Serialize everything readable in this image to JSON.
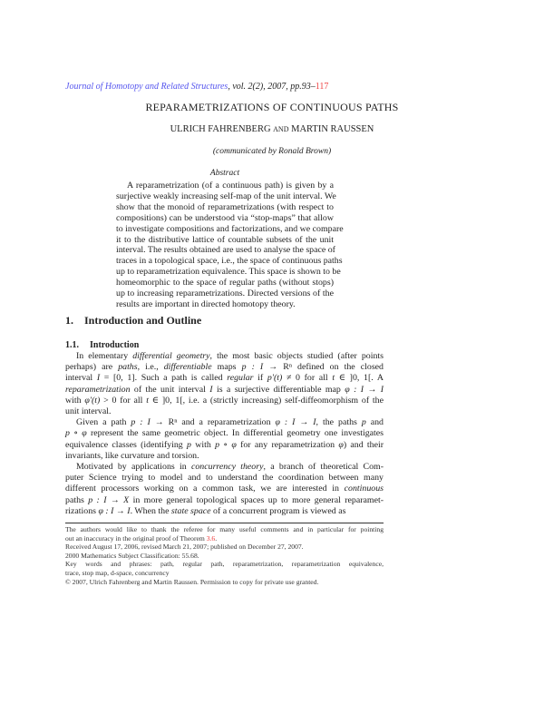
{
  "header": {
    "journal": "Journal of Homotopy and Related Structures",
    "details": ", vol. 2(2), 2007, pp.93–",
    "last_page": "117",
    "link_color": "#5555ee",
    "ref_color": "#ee4444"
  },
  "title": "REPARAMETRIZATIONS OF CONTINUOUS PATHS",
  "authors": {
    "first": "ULRICH FAHRENBERG",
    "conj": "AND",
    "second": "MARTIN RAUSSEN"
  },
  "communicated": "(communicated by Ronald Brown)",
  "abstract_label": "Abstract",
  "abstract": [
    [
      [
        {
          "t": "A reparametrization (of a continuous path) is given by a"
        }
      ],
      [
        {
          "t": "surjective weakly increasing self-map of the unit interval. We"
        }
      ],
      [
        {
          "t": "show that the monoid of reparametrizations (with respect to"
        }
      ],
      [
        {
          "t": "compositions) can be understood via “stop-maps” that allow"
        }
      ],
      [
        {
          "t": "to investigate compositions and factorizations, and we compare"
        }
      ],
      [
        {
          "t": "it to the distributive lattice of countable subsets of the unit"
        }
      ],
      [
        {
          "t": "interval. The results obtained are used to analyse the space of"
        }
      ],
      [
        {
          "t": "traces in a topological space, i.e., the space of continuous paths"
        }
      ],
      [
        {
          "t": "up to reparametrization equivalence. This space is shown to be"
        }
      ],
      [
        {
          "t": "homeomorphic to the space of regular paths (without stops)"
        }
      ],
      [
        {
          "t": "up to increasing reparametrizations. Directed versions of the"
        }
      ],
      [
        {
          "t": "results are important in directed homotopy theory."
        }
      ]
    ]
  ],
  "section": {
    "number": "1.",
    "title": "Introduction and Outline"
  },
  "subsection": {
    "number": "1.1.",
    "title": "Introduction"
  },
  "paragraphs": [
    [
      [
        {
          "t": "In elementary "
        },
        {
          "t": "differential geometry",
          "i": true
        },
        {
          "t": ", the most basic objects studied (after points"
        }
      ],
      [
        {
          "t": "perhaps) are "
        },
        {
          "t": "paths",
          "i": true
        },
        {
          "t": ", i.e., "
        },
        {
          "t": "differentiable",
          "i": true
        },
        {
          "t": " maps "
        },
        {
          "t": "p : I → ",
          "i": true
        },
        {
          "t": "Rⁿ"
        },
        {
          "t": " defined on the closed"
        }
      ],
      [
        {
          "t": "interval "
        },
        {
          "t": "I",
          "i": true
        },
        {
          "t": " = [0, 1]. Such a path is called "
        },
        {
          "t": "regular",
          "i": true
        },
        {
          "t": " if "
        },
        {
          "t": "p′(t)",
          "i": true
        },
        {
          "t": " ≠ 0 for all "
        },
        {
          "t": "t",
          "i": true
        },
        {
          "t": " ∈ ]0, 1[. A"
        }
      ],
      [
        {
          "t": "reparametrization",
          "i": true
        },
        {
          "t": " of the unit interval "
        },
        {
          "t": "I",
          "i": true
        },
        {
          "t": " is a surjective differentiable map "
        },
        {
          "t": "φ : I → I",
          "i": true
        }
      ],
      [
        {
          "t": "with "
        },
        {
          "t": "φ′(t)",
          "i": true
        },
        {
          "t": " > 0 for all "
        },
        {
          "t": "t",
          "i": true
        },
        {
          "t": " ∈ ]0, 1[, i.e. a (strictly increasing) self-diffeomorphism of the"
        }
      ],
      [
        {
          "t": "unit interval."
        }
      ]
    ],
    [
      [
        {
          "t": "Given a path "
        },
        {
          "t": "p : I → ",
          "i": true
        },
        {
          "t": "Rⁿ"
        },
        {
          "t": " and a reparametrization "
        },
        {
          "t": "φ : I → I",
          "i": true
        },
        {
          "t": ", the paths "
        },
        {
          "t": "p",
          "i": true
        },
        {
          "t": " and"
        }
      ],
      [
        {
          "t": "p ∘ φ",
          "i": true
        },
        {
          "t": " represent the same geometric object. In differential geometry one investigates"
        }
      ],
      [
        {
          "t": "equivalence classes (identifying "
        },
        {
          "t": "p",
          "i": true
        },
        {
          "t": " with "
        },
        {
          "t": "p ∘ φ",
          "i": true
        },
        {
          "t": " for any reparametrization "
        },
        {
          "t": "φ",
          "i": true
        },
        {
          "t": ") and their"
        }
      ],
      [
        {
          "t": "invariants, like curvature and torsion."
        }
      ]
    ],
    [
      [
        {
          "t": "Motivated by applications in "
        },
        {
          "t": "concurrency theory",
          "i": true
        },
        {
          "t": ", a branch of theoretical Com-"
        }
      ],
      [
        {
          "t": "puter Science trying to model and to understand the coordination between many"
        }
      ],
      [
        {
          "t": "different processors working on a common task, we are interested in "
        },
        {
          "t": "continuous",
          "i": true
        }
      ],
      [
        {
          "t": "paths "
        },
        {
          "t": "p : I → X",
          "i": true
        },
        {
          "t": " in more general topological spaces up to more general reparamet-"
        }
      ],
      [
        {
          "t": "rizations "
        },
        {
          "t": "φ : I → I",
          "i": true
        },
        {
          "t": ". When the "
        },
        {
          "t": "state space",
          "i": true
        },
        {
          "t": " of a concurrent program is viewed as"
        }
      ]
    ]
  ],
  "footnotes": [
    [
      [
        {
          "t": "The authors would like to thank the referee for many useful comments and in particular for pointing"
        }
      ],
      [
        {
          "t": "out an inaccuracy in the original proof of Theorem "
        },
        {
          "t": "3.6",
          "r": true
        },
        {
          "t": "."
        }
      ]
    ],
    [
      [
        {
          "t": "Received August 17, 2006, revised March 21, 2007; published on December 27, 2007."
        }
      ]
    ],
    [
      [
        {
          "t": "2000 Mathematics Subject Classification: 55.68."
        }
      ]
    ],
    [
      [
        {
          "t": "Key words and phrases: path, regular path, reparametrization, reparametrization equivalence,"
        }
      ],
      [
        {
          "t": "trace, stop map, d-space, concurrency"
        }
      ]
    ],
    [
      [
        {
          "t": "© 2007, Ulrich Fahrenberg and Martin Raussen. Permission to copy for private use granted."
        }
      ]
    ]
  ]
}
